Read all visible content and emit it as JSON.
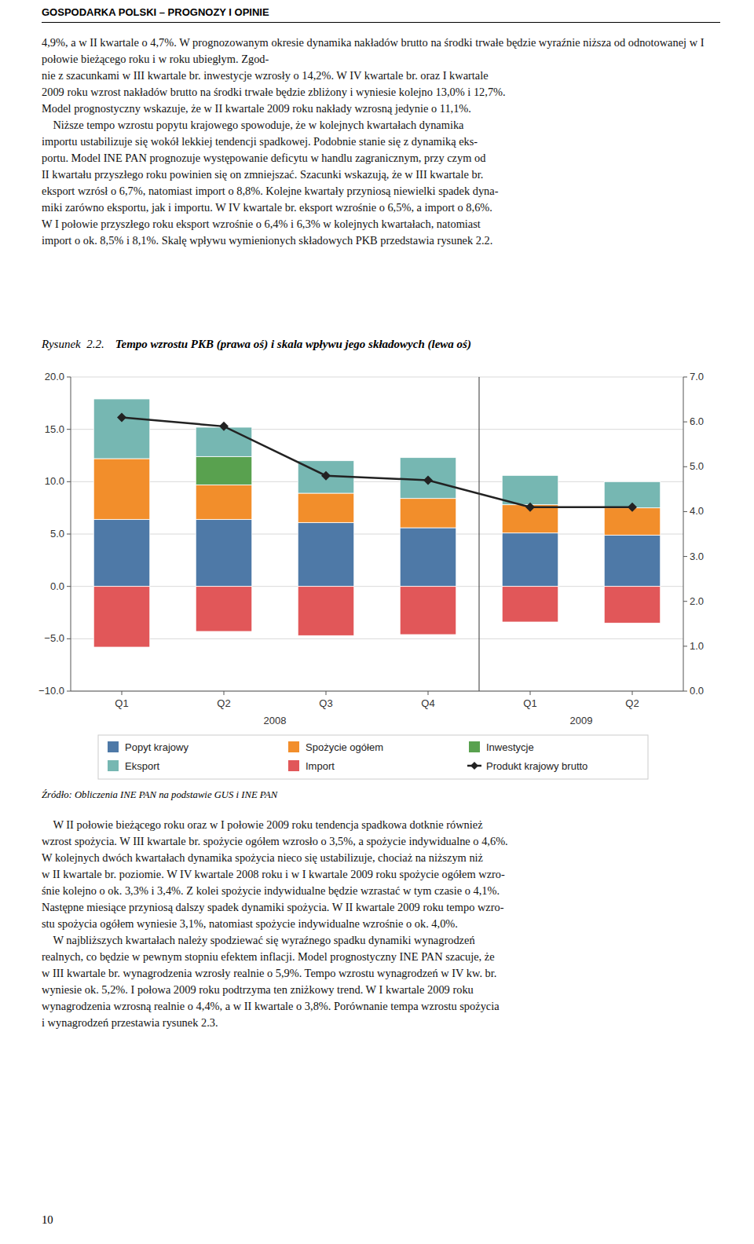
{
  "header_label": "GOSPODARKA POLSKI – PROGNOZY I OPINIE",
  "header_text": "4,9%, a w II kwartale o 4,7%. W prognozowanym okresie dynamika nakładów brutto na środki trwałe będzie wyraźnie niższa od odnotowanej w I połowie bieżącego roku i w roku ubiegłym. Zgod-\nnie z szacunkami w III kwartale br. inwestycje wzrosły o 14,2%. W IV kwartale br. oraz I kwartale\n2009 roku wzrost nakładów brutto na środki trwałe będzie zbliżony i wyniesie kolejno 13,0% i 12,7%.\nModel prognostyczny wskazuje, że w II kwartale 2009 roku nakłady wzrosną jedynie o 11,1%.\n    Niższe tempo wzrostu popytu krajowego spowoduje, że w kolejnych kwartałach dynamika\nimportu ustabilizuje się wokół lekkiej tendencji spadkowej. Podobnie stanie się z dynamiką eks-\nportu. Model INE PAN prognozuje występowanie deficytu w handlu zagranicznym, przy czym od\nII kwartału przyszłego roku powinien się on zmniejszać. Szacunki wskazują, że w III kwartale br.\neksport wzrósł o 6,7%, natomiast import o 8,8%. Kolejne kwartały przyniosą niewielki spadek dyna-\nmiki zarówno eksportu, jak i importu. W IV kwartale br. eksport wzrośnie o 6,5%, a import o 8,6%.\nW I połowie przyszłego roku eksport wzrośnie o 6,4% i 6,3% w kolejnych kwartałach, natomiast\nimport o ok. 8,5% i 8,1%. Skalę wpływu wymienionych składowych PKB przedstawia rysunek 2.2.",
  "source_text": "Źródło: Obliczenia INE PAN na podstawie GUS i INE PAN",
  "bottom_text": "    W II połowie bieżącego roku oraz w I połowie 2009 roku tendencja spadkowa dotknie również\nwzrost spożycia. W III kwartale br. spożycie ogółem wzrosło o 3,5%, a spożycie indywidualne o 4,6%.\nW kolejnych dwóch kwartałach dynamika spożycia nieco się ustabilizuje, chociaż na niższym niż\nw II kwartale br. poziomie. W IV kwartale 2008 roku i w I kwartale 2009 roku spożycie ogółem wzro-\nśnie kolejno o ok. 3,3% i 3,4%. Z kolei spożycie indywidualne będzie wzrastać w tym czasie o 4,1%.\nNastępne miesiące przyniosą dalszy spadek dynamiki spożycia. W II kwartale 2009 roku tempo wzro-\nstu spożycia ogółem wyniesie 3,1%, natomiast spożycie indywidualne wzrośnie o ok. 4,0%.\n    W najbliższych kwartałach należy spodziewać się wyraźnego spadku dynamiki wynagrodzeń\nrealnych, co będzie w pewnym stopniu efektem inflacji. Model prognostyczny INE PAN szacuje, że\nw III kwartale br. wynagrodzenia wzrosły realnie o 5,9%. Tempo wzrostu wynagrodzeń w IV kw. br.\nwyniesie ok. 5,2%. I połowa 2009 roku podtrzyma ten zniżkowy trend. W I kwartale 2009 roku\nwynagrodzenia wzrosną realnie o 4,4%, a w II kwartale o 3,8%. Porównanie tempa wzrostu spożycia\ni wynagrodzeń przestawia rysunek 2.3.",
  "page_number": "10",
  "chart_data": {
    "type": "bar",
    "stacked": true,
    "figure_label": "Rysunek  2.2.",
    "title": "Tempo wzrostu PKB (prawa oś) i skala wpływu jego składowych (lewa oś)",
    "categories": [
      "Q1",
      "Q2",
      "Q3",
      "Q4",
      "Q1",
      "Q2"
    ],
    "groups": [
      {
        "label": "2008",
        "size": 4
      },
      {
        "label": "2009",
        "size": 2
      }
    ],
    "series": [
      {
        "name": "Popyt krajowy",
        "color": "#4e79a7",
        "values": [
          6.4,
          6.4,
          6.1,
          5.6,
          5.1,
          4.9
        ]
      },
      {
        "name": "Spożycie ogółem",
        "color": "#f28e2b",
        "values": [
          5.8,
          3.3,
          2.8,
          2.8,
          2.7,
          2.6
        ]
      },
      {
        "name": "Inwestycje",
        "color": "#59a14f",
        "values": [
          0.0,
          2.7,
          0.0,
          0.0,
          0.0,
          0.0
        ]
      },
      {
        "name": "Eksport",
        "color": "#76b7b2",
        "values": [
          5.7,
          2.8,
          3.1,
          3.9,
          2.8,
          2.5
        ]
      },
      {
        "name": "Import",
        "color": "#e15759",
        "values": [
          -5.8,
          -4.3,
          -4.7,
          -4.6,
          -3.4,
          -3.5
        ]
      },
      {
        "name": "Produkt krajowy brutto",
        "type": "line",
        "axis": "y2",
        "color": "#222222",
        "marker": "diamond",
        "values": [
          6.1,
          5.9,
          4.8,
          4.7,
          4.1,
          4.1
        ]
      }
    ],
    "ylim": [
      -10.0,
      20.0
    ],
    "yticks": [
      {
        "value": -10.0,
        "label": "−10.0"
      },
      {
        "value": -5.0,
        "label": "−5.0"
      },
      {
        "value": 0.0,
        "label": "0.0"
      },
      {
        "value": 5.0,
        "label": "5.0"
      },
      {
        "value": 10.0,
        "label": "10.0"
      },
      {
        "value": 15.0,
        "label": "15.0"
      },
      {
        "value": 20.0,
        "label": "20.0"
      }
    ],
    "y2lim": [
      0.0,
      7.0
    ],
    "y2ticks": [
      {
        "value": 0.0,
        "label": "0.0"
      },
      {
        "value": 1.0,
        "label": "1.0"
      },
      {
        "value": 2.0,
        "label": "2.0"
      },
      {
        "value": 3.0,
        "label": "3.0"
      },
      {
        "value": 4.0,
        "label": "4.0"
      },
      {
        "value": 5.0,
        "label": "5.0"
      },
      {
        "value": 6.0,
        "label": "6.0"
      },
      {
        "value": 7.0,
        "label": "7.0"
      }
    ],
    "grid": true,
    "legend": "bottom"
  }
}
